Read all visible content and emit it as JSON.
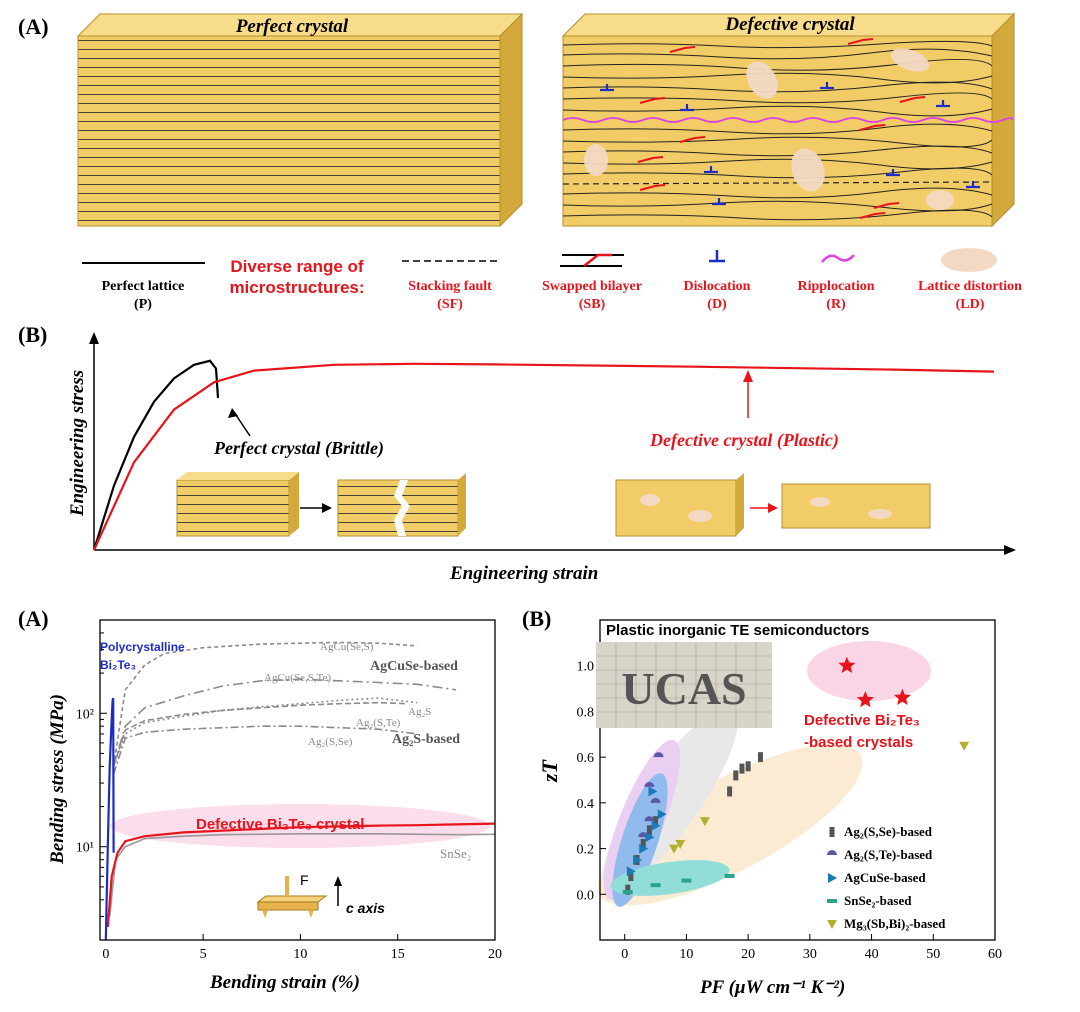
{
  "labels": {
    "top_A": "(A)",
    "top_B": "(B)",
    "bottom_A": "(A)",
    "bottom_B": "(B)"
  },
  "panelA": {
    "perfect_title": "Perfect crystal",
    "defective_title": "Defective crystal",
    "legend_header": [
      "Diverse range of",
      "microstructures:"
    ],
    "legend": [
      {
        "name": "Perfect lattice",
        "abbr": "(P)",
        "color": "#000000"
      },
      {
        "name": "Stacking fault",
        "abbr": "(SF)",
        "color": "#e8141c"
      },
      {
        "name": "Swapped bilayer",
        "abbr": "(SB)",
        "color": "#e8141c"
      },
      {
        "name": "Dislocation",
        "abbr": "(D)",
        "color": "#e8141c"
      },
      {
        "name": "Ripplocation",
        "abbr": "(R)",
        "color": "#e8141c"
      },
      {
        "name": "Lattice distortion",
        "abbr": "(LD)",
        "color": "#e8141c"
      }
    ],
    "colors": {
      "crystal_face": "#f2cd67",
      "crystal_top": "#f7dc8a",
      "crystal_side": "#d4a93c",
      "red": "#e8141c",
      "blue": "#1c2cc8",
      "magenta": "#e040e0",
      "distortion": "#f3d9c3"
    }
  },
  "panelB_top": {
    "chart_data": {
      "type": "line",
      "xlabel": "Engineering strain",
      "ylabel": "Engineering stress",
      "series": [
        {
          "name": "Perfect crystal (Brittle)",
          "color": "#000000",
          "x": [
            0,
            1,
            2,
            3,
            4,
            5,
            5.8,
            6.1,
            6.2
          ],
          "y": [
            0,
            0.33,
            0.58,
            0.76,
            0.88,
            0.95,
            0.97,
            0.93,
            0.78
          ]
        },
        {
          "name": "Defective crystal (Plastic)",
          "color": "#e8141c",
          "x": [
            0,
            2,
            4,
            6,
            8,
            12,
            16,
            20,
            30,
            40,
            45
          ],
          "y": [
            0,
            0.45,
            0.72,
            0.86,
            0.92,
            0.95,
            0.955,
            0.952,
            0.94,
            0.925,
            0.915
          ]
        }
      ],
      "annotations": [
        "Perfect crystal  (Brittle)",
        "Defective crystal  (Plastic)"
      ]
    }
  },
  "panelA_bottom": {
    "chart_data": {
      "type": "line",
      "xlabel": "Bending strain (%)",
      "ylabel": "Bending stress (MPa)",
      "xlim": [
        -0.3,
        20
      ],
      "ylim": [
        2,
        500
      ],
      "yscale": "log",
      "xticks": [
        "0",
        "5",
        "10",
        "15",
        "20"
      ],
      "yticks": [
        "10¹",
        "10²"
      ],
      "series": [
        {
          "name": "AgCu(Se,S)",
          "color": "#8a8a8a",
          "dash": "4,3",
          "x": [
            0.4,
            1,
            2,
            3,
            5,
            8,
            10,
            12,
            14,
            16
          ],
          "y": [
            40,
            150,
            230,
            280,
            310,
            330,
            335,
            340,
            335,
            320
          ]
        },
        {
          "name": "AgCu(Se,S,Te)",
          "color": "#8a8a8a",
          "dash": "10,4,2,4",
          "x": [
            0.4,
            1,
            2,
            4,
            6,
            8,
            10,
            12,
            14,
            16,
            18
          ],
          "y": [
            40,
            80,
            110,
            135,
            160,
            175,
            180,
            175,
            170,
            165,
            150
          ]
        },
        {
          "name": "Ag2S",
          "color": "#8a8a8a",
          "dash": "2,3",
          "x": [
            0.4,
            1,
            2,
            4,
            6,
            8,
            10,
            12,
            14,
            16
          ],
          "y": [
            40,
            70,
            85,
            95,
            105,
            112,
            118,
            125,
            130,
            120
          ]
        },
        {
          "name": "Ag2(S,Te)",
          "color": "#8a8a8a",
          "dash": "6,3",
          "x": [
            0.4,
            1,
            2,
            4,
            6,
            8,
            10,
            12,
            14,
            15.5
          ],
          "y": [
            40,
            75,
            88,
            98,
            105,
            110,
            115,
            118,
            120,
            118
          ]
        },
        {
          "name": "Ag2(S,Se)",
          "color": "#8a8a8a",
          "dash": "8,3,2,3",
          "x": [
            0.4,
            1,
            2,
            4,
            6,
            8,
            10,
            12,
            14,
            16
          ],
          "y": [
            35,
            65,
            72,
            76,
            78,
            80,
            80,
            78,
            76,
            70
          ]
        },
        {
          "name": "SnSe2",
          "color": "#999999",
          "dash": "",
          "x": [
            0.2,
            0.5,
            1,
            2,
            4,
            6,
            10,
            14,
            18,
            20
          ],
          "y": [
            3,
            8,
            10,
            11.5,
            12,
            12.3,
            12.5,
            12.5,
            12.3,
            12.4
          ]
        },
        {
          "name": "Defective Bi2Te3 crystal",
          "color": "#e8141c",
          "dash": "",
          "x": [
            0.1,
            0.3,
            0.6,
            1,
            2,
            4,
            6,
            8,
            10,
            12,
            14,
            16,
            18,
            20
          ],
          "y": [
            2.5,
            6,
            9,
            11,
            12,
            12.8,
            13.2,
            13.6,
            14,
            14.2,
            14.4,
            14.5,
            14.7,
            14.9
          ]
        },
        {
          "name": "Polycrystalline Bi2Te3",
          "color": "#1c2cc8",
          "dash": "",
          "x": [
            0,
            0.1,
            0.2,
            0.3,
            0.35,
            0.38,
            0.4
          ],
          "y": [
            2,
            10,
            40,
            90,
            125,
            130,
            9
          ]
        }
      ],
      "annotations": {
        "agcuse": "AgCuSe-based",
        "ag2s": "Ag₂S-based",
        "ag2s_label": "Ag₂S",
        "ag2ste": "Ag₂(S,Te)",
        "ag2sse": "Ag₂(S,Se)",
        "agcusecs": "AgCu(Se,S)",
        "agcusecste": "AgCu(Se,S,Te)",
        "snse2": "SnSe₂",
        "defective": "Defective Bi₂Te₃ crystal",
        "poly1": "Polycrystalline",
        "poly2": "Bi₂Te₃",
        "force": "F",
        "axis": "c axis"
      }
    }
  },
  "panelB_bottom": {
    "chart_data": {
      "type": "scatter",
      "title": "Plastic inorganic TE semiconductors",
      "xlabel": "PF (μW cm⁻¹ K⁻²)",
      "ylabel": "zT",
      "xlim": [
        -4,
        60
      ],
      "ylim": [
        -0.2,
        1.2
      ],
      "xticks": [
        "0",
        "10",
        "20",
        "30",
        "40",
        "50",
        "60"
      ],
      "yticks": [
        "0.0",
        "0.2",
        "0.4",
        "0.6",
        "0.8",
        "1.0"
      ],
      "series": [
        {
          "name": "Ag₂(S,Se)-based",
          "color": "#555555",
          "marker": "square",
          "points": [
            [
              0.5,
              0.02
            ],
            [
              1,
              0.08
            ],
            [
              2,
              0.15
            ],
            [
              3,
              0.22
            ],
            [
              4,
              0.28
            ],
            [
              5,
              0.32
            ],
            [
              17,
              0.45
            ],
            [
              18,
              0.52
            ],
            [
              19,
              0.55
            ],
            [
              20,
              0.56
            ],
            [
              22,
              0.6
            ]
          ]
        },
        {
          "name": "Ag₂(S,Te)-based",
          "color": "#5a5aa8",
          "marker": "halfcircle",
          "points": [
            [
              3,
              0.25
            ],
            [
              4,
              0.32
            ],
            [
              5,
              0.4
            ],
            [
              5.5,
              0.6
            ],
            [
              4,
              0.47
            ]
          ]
        },
        {
          "name": "AgCuSe-based",
          "color": "#1a7ab8",
          "marker": "triangle-right",
          "points": [
            [
              1,
              0.1
            ],
            [
              2,
              0.15
            ],
            [
              3,
              0.2
            ],
            [
              4,
              0.25
            ],
            [
              5,
              0.3
            ],
            [
              6,
              0.35
            ],
            [
              4.5,
              0.45
            ]
          ]
        },
        {
          "name": "SnSe₂-based",
          "color": "#2aa38a",
          "marker": "dash",
          "points": [
            [
              0.5,
              0.01
            ],
            [
              5,
              0.04
            ],
            [
              10,
              0.06
            ],
            [
              17,
              0.08
            ]
          ]
        },
        {
          "name": "Mg₃(Sb,Bi)₂-based",
          "color": "#b0b030",
          "marker": "triangle-down",
          "points": [
            [
              8,
              0.2
            ],
            [
              9,
              0.22
            ],
            [
              13,
              0.32
            ],
            [
              55,
              0.65
            ]
          ]
        },
        {
          "name": "Defective Bi₂Te₃ -based crystals",
          "color": "#e8141c",
          "marker": "star",
          "points": [
            [
              36,
              1.0
            ],
            [
              39,
              0.85
            ],
            [
              45,
              0.86
            ]
          ]
        }
      ],
      "annotations": {
        "defective1": "Defective Bi₂Te₃",
        "defective2": "-based crystals",
        "ucas": "UCAS"
      }
    }
  }
}
